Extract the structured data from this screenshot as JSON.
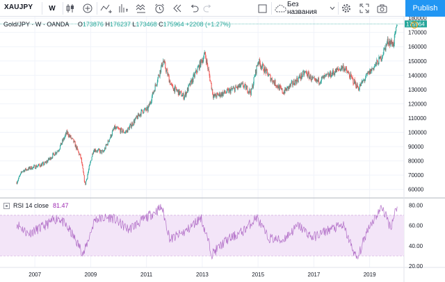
{
  "toolbar": {
    "symbol": "XAUJPY",
    "interval": "W",
    "layout_name": "Без названия",
    "publish_label": "Publish",
    "icons": [
      "candles-icon",
      "plus-circle-icon",
      "indicators-icon",
      "bar-chart-icon",
      "templates-icon",
      "alert-clock-icon",
      "replay-icon",
      "undo-icon",
      "redo-icon",
      "rectangle-icon",
      "cloud-icon",
      "chevron-down-icon",
      "gear-icon",
      "fullscreen-icon",
      "camera-icon"
    ]
  },
  "legend": {
    "title": "Gold/JPY · W · OANDA",
    "open_label": "O",
    "open": "173876",
    "high_label": "H",
    "high": "176237",
    "low_label": "L",
    "low": "173468",
    "close_label": "C",
    "close": "175964",
    "change": "+2208 (+1.27%)"
  },
  "rsi": {
    "label": "RSI 14 close",
    "value": "81.47"
  },
  "price_axis": {
    "ticks": [
      "180000",
      "170000",
      "160000",
      "150000",
      "140000",
      "130000",
      "120000",
      "110000",
      "100000",
      "90000",
      "80000",
      "70000",
      "60000"
    ],
    "last_price": "175964"
  },
  "rsi_axis": {
    "ticks": [
      "80.00",
      "60.00",
      "40.00",
      "20.00"
    ]
  },
  "time_axis": {
    "ticks": [
      "2007",
      "2009",
      "2011",
      "2013",
      "2015",
      "2017",
      "2019"
    ]
  },
  "colors": {
    "up": "#26a69a",
    "down": "#ef5350",
    "rsi_line": "#b06cc6",
    "rsi_band": "#f3e5f8",
    "accent": "#2196f3"
  },
  "chart_data": [
    {
      "type": "candlestick",
      "title": "Gold/JPY · W · OANDA",
      "x_range": [
        "2006-05",
        "2020-01"
      ],
      "ylim": [
        55000,
        182000
      ],
      "keyframes": [
        {
          "t": 2006.4,
          "price": 65000
        },
        {
          "t": 2006.6,
          "price": 73000
        },
        {
          "t": 2006.9,
          "price": 75000
        },
        {
          "t": 2007.4,
          "price": 78000
        },
        {
          "t": 2007.9,
          "price": 88000
        },
        {
          "t": 2008.2,
          "price": 100000
        },
        {
          "t": 2008.45,
          "price": 93000
        },
        {
          "t": 2008.7,
          "price": 82000
        },
        {
          "t": 2008.85,
          "price": 63000
        },
        {
          "t": 2009.15,
          "price": 88000
        },
        {
          "t": 2009.5,
          "price": 86000
        },
        {
          "t": 2009.9,
          "price": 103000
        },
        {
          "t": 2010.3,
          "price": 100000
        },
        {
          "t": 2010.9,
          "price": 115000
        },
        {
          "t": 2011.1,
          "price": 116000
        },
        {
          "t": 2011.65,
          "price": 150000
        },
        {
          "t": 2011.95,
          "price": 132000
        },
        {
          "t": 2012.4,
          "price": 125000
        },
        {
          "t": 2012.9,
          "price": 145000
        },
        {
          "t": 2013.15,
          "price": 155000
        },
        {
          "t": 2013.45,
          "price": 125000
        },
        {
          "t": 2013.9,
          "price": 128000
        },
        {
          "t": 2014.5,
          "price": 133000
        },
        {
          "t": 2014.8,
          "price": 128000
        },
        {
          "t": 2015.05,
          "price": 150000
        },
        {
          "t": 2015.5,
          "price": 138000
        },
        {
          "t": 2015.95,
          "price": 128000
        },
        {
          "t": 2016.4,
          "price": 136000
        },
        {
          "t": 2016.75,
          "price": 142000
        },
        {
          "t": 2017.1,
          "price": 135000
        },
        {
          "t": 2017.6,
          "price": 140000
        },
        {
          "t": 2018.1,
          "price": 146000
        },
        {
          "t": 2018.65,
          "price": 131000
        },
        {
          "t": 2019.0,
          "price": 141000
        },
        {
          "t": 2019.45,
          "price": 152000
        },
        {
          "t": 2019.7,
          "price": 164000
        },
        {
          "t": 2019.9,
          "price": 162000
        },
        {
          "t": 2020.05,
          "price": 175964
        }
      ]
    },
    {
      "type": "line",
      "title": "RSI 14 close",
      "ylim": [
        20,
        85
      ],
      "band": [
        30,
        70
      ],
      "keyframes": [
        {
          "t": 2006.4,
          "rsi": 62
        },
        {
          "t": 2006.8,
          "rsi": 52
        },
        {
          "t": 2007.3,
          "rsi": 58
        },
        {
          "t": 2007.9,
          "rsi": 68
        },
        {
          "t": 2008.3,
          "rsi": 55
        },
        {
          "t": 2008.8,
          "rsi": 32
        },
        {
          "t": 2009.2,
          "rsi": 66
        },
        {
          "t": 2009.8,
          "rsi": 68
        },
        {
          "t": 2010.4,
          "rsi": 56
        },
        {
          "t": 2010.9,
          "rsi": 65
        },
        {
          "t": 2011.6,
          "rsi": 78
        },
        {
          "t": 2011.9,
          "rsi": 46
        },
        {
          "t": 2012.5,
          "rsi": 55
        },
        {
          "t": 2013.0,
          "rsi": 68
        },
        {
          "t": 2013.4,
          "rsi": 32
        },
        {
          "t": 2013.9,
          "rsi": 45
        },
        {
          "t": 2014.5,
          "rsi": 54
        },
        {
          "t": 2015.0,
          "rsi": 68
        },
        {
          "t": 2015.4,
          "rsi": 48
        },
        {
          "t": 2015.9,
          "rsi": 45
        },
        {
          "t": 2016.5,
          "rsi": 60
        },
        {
          "t": 2017.0,
          "rsi": 48
        },
        {
          "t": 2017.6,
          "rsi": 56
        },
        {
          "t": 2018.1,
          "rsi": 60
        },
        {
          "t": 2018.6,
          "rsi": 26
        },
        {
          "t": 2019.0,
          "rsi": 58
        },
        {
          "t": 2019.5,
          "rsi": 78
        },
        {
          "t": 2019.8,
          "rsi": 58
        },
        {
          "t": 2020.05,
          "rsi": 81.47
        }
      ]
    }
  ]
}
